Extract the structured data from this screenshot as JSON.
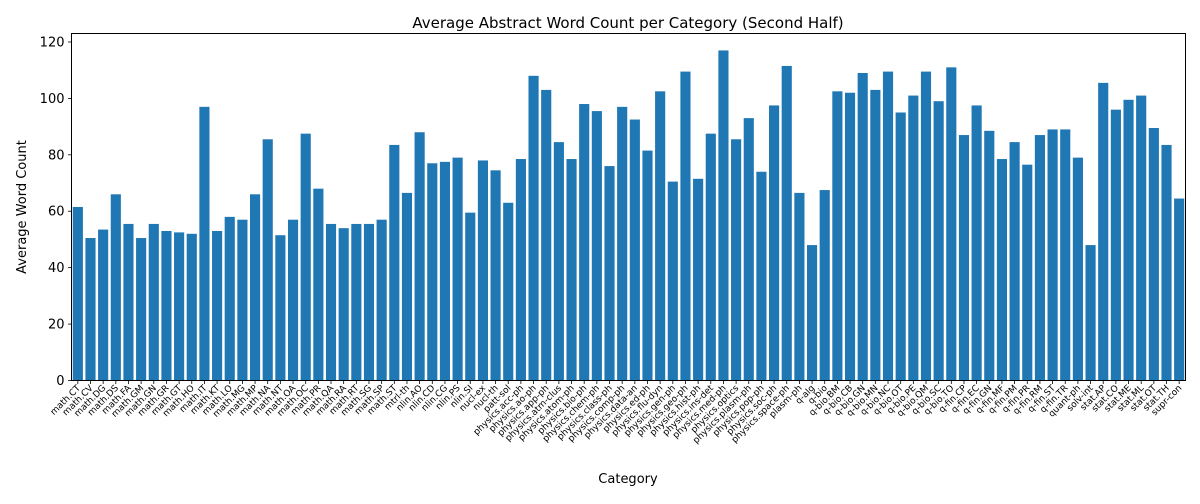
{
  "chart_data": {
    "type": "bar",
    "title": "Average Abstract Word Count per Category (Second Half)",
    "xlabel": "Category",
    "ylabel": "Average Word Count",
    "ylim": [
      0,
      123
    ],
    "yticks": [
      0,
      20,
      40,
      60,
      80,
      100,
      120
    ],
    "grid": false,
    "bar_color": "#1f77b4",
    "categories": [
      "math.CT",
      "math.CV",
      "math.DG",
      "math.DS",
      "math.FA",
      "math.GM",
      "math.GN",
      "math.GR",
      "math.GT",
      "math.HO",
      "math.IT",
      "math.KT",
      "math.LO",
      "math.MG",
      "math.MP",
      "math.NA",
      "math.NT",
      "math.OA",
      "math.OC",
      "math.PR",
      "math.QA",
      "math.RA",
      "math.RT",
      "math.SG",
      "math.SP",
      "math.ST",
      "mtrl-th",
      "nlin.AO",
      "nlin.CD",
      "nlin.CG",
      "nlin.PS",
      "nlin.SI",
      "nucl-ex",
      "nucl-th",
      "patt-sol",
      "physics.acc-ph",
      "physics.ao-ph",
      "physics.app-ph",
      "physics.atm-clus",
      "physics.atom-ph",
      "physics.bio-ph",
      "physics.chem-ph",
      "physics.class-ph",
      "physics.comp-ph",
      "physics.data-an",
      "physics.ed-ph",
      "physics.flu-dyn",
      "physics.gen-ph",
      "physics.geo-ph",
      "physics.hist-ph",
      "physics.ins-det",
      "physics.med-ph",
      "physics.optics",
      "physics.plasm-ph",
      "physics.pop-ph",
      "physics.soc-ph",
      "physics.space-ph",
      "plasm-ph",
      "q-alg",
      "q-bio",
      "q-bio.BM",
      "q-bio.CB",
      "q-bio.GN",
      "q-bio.MN",
      "q-bio.NC",
      "q-bio.OT",
      "q-bio.PE",
      "q-bio.QM",
      "q-bio.SC",
      "q-bio.TO",
      "q-fin.CP",
      "q-fin.EC",
      "q-fin.GN",
      "q-fin.MF",
      "q-fin.PM",
      "q-fin.PR",
      "q-fin.RM",
      "q-fin.ST",
      "q-fin.TR",
      "quant-ph",
      "solv-int",
      "stat.AP",
      "stat.CO",
      "stat.ME",
      "stat.ML",
      "stat.OT",
      "stat.TH",
      "supr-con"
    ],
    "values": [
      61.5,
      50.5,
      53.5,
      66,
      55.5,
      50.5,
      55.5,
      53,
      52.5,
      52,
      97,
      53,
      58,
      57,
      66,
      85.5,
      51.5,
      57,
      87.5,
      68,
      55.5,
      54,
      55.5,
      55.5,
      57,
      83.5,
      66.5,
      88,
      77,
      77.5,
      79,
      59.5,
      78,
      74.5,
      63,
      78.5,
      108,
      103,
      84.5,
      78.5,
      98,
      95.5,
      76,
      97,
      92.5,
      81.5,
      102.5,
      70.5,
      109.5,
      71.5,
      87.5,
      117,
      85.5,
      93,
      74,
      97.5,
      111.5,
      66.5,
      48,
      67.5,
      102.5,
      102,
      109,
      103,
      109.5,
      95,
      101,
      109.5,
      99,
      111,
      87,
      97.5,
      88.5,
      78.5,
      84.5,
      76.5,
      87,
      89,
      89,
      79,
      48,
      105.5,
      96,
      99.5,
      101,
      89.5,
      83.5,
      64.5
    ]
  }
}
